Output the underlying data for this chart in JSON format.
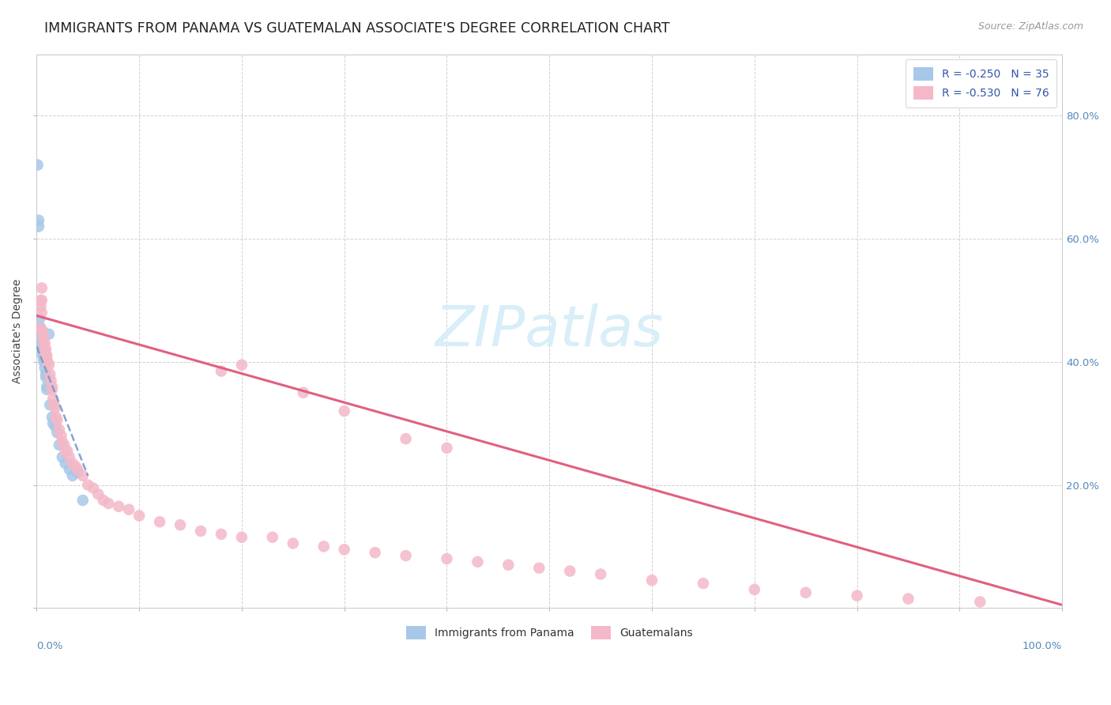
{
  "title": "IMMIGRANTS FROM PANAMA VS GUATEMALAN ASSOCIATE'S DEGREE CORRELATION CHART",
  "source": "Source: ZipAtlas.com",
  "ylabel": "Associate's Degree",
  "legend_1_label": "R = -0.250   N = 35",
  "legend_2_label": "R = -0.530   N = 76",
  "color_panama": "#a8c8e8",
  "color_guatemala": "#f4b8c8",
  "color_panama_line": "#7799cc",
  "color_guatemala_line": "#e06080",
  "background_color": "#ffffff",
  "grid_color": "#cccccc",
  "xlim": [
    0.0,
    1.0
  ],
  "ylim": [
    0.0,
    0.9
  ],
  "right_ytick_vals": [
    0.2,
    0.4,
    0.6,
    0.8
  ],
  "right_ytick_labels": [
    "20.0%",
    "40.0%",
    "60.0%",
    "80.0%"
  ],
  "panama_x": [
    0.001,
    0.002,
    0.002,
    0.003,
    0.003,
    0.004,
    0.004,
    0.004,
    0.005,
    0.005,
    0.005,
    0.005,
    0.006,
    0.006,
    0.006,
    0.007,
    0.007,
    0.008,
    0.009,
    0.009,
    0.01,
    0.01,
    0.012,
    0.013,
    0.015,
    0.016,
    0.018,
    0.02,
    0.022,
    0.025,
    0.028,
    0.032,
    0.035,
    0.04,
    0.045
  ],
  "panama_y": [
    0.72,
    0.63,
    0.62,
    0.47,
    0.455,
    0.455,
    0.45,
    0.44,
    0.445,
    0.44,
    0.435,
    0.43,
    0.42,
    0.415,
    0.41,
    0.405,
    0.4,
    0.39,
    0.38,
    0.375,
    0.36,
    0.355,
    0.445,
    0.33,
    0.31,
    0.3,
    0.295,
    0.285,
    0.265,
    0.245,
    0.235,
    0.225,
    0.215,
    0.22,
    0.175
  ],
  "guatemala_x": [
    0.003,
    0.004,
    0.004,
    0.005,
    0.005,
    0.005,
    0.006,
    0.006,
    0.007,
    0.007,
    0.008,
    0.008,
    0.009,
    0.009,
    0.01,
    0.01,
    0.011,
    0.012,
    0.013,
    0.014,
    0.015,
    0.015,
    0.016,
    0.017,
    0.018,
    0.019,
    0.02,
    0.022,
    0.024,
    0.025,
    0.027,
    0.028,
    0.03,
    0.032,
    0.035,
    0.038,
    0.04,
    0.045,
    0.05,
    0.055,
    0.06,
    0.065,
    0.07,
    0.08,
    0.09,
    0.1,
    0.12,
    0.14,
    0.16,
    0.18,
    0.2,
    0.23,
    0.25,
    0.28,
    0.3,
    0.33,
    0.36,
    0.4,
    0.43,
    0.46,
    0.49,
    0.52,
    0.55,
    0.6,
    0.65,
    0.7,
    0.75,
    0.8,
    0.85,
    0.92,
    0.18,
    0.2,
    0.26,
    0.3,
    0.36,
    0.4
  ],
  "guatemala_y": [
    0.455,
    0.49,
    0.5,
    0.52,
    0.5,
    0.48,
    0.45,
    0.44,
    0.44,
    0.43,
    0.42,
    0.43,
    0.42,
    0.41,
    0.41,
    0.4,
    0.4,
    0.395,
    0.38,
    0.37,
    0.36,
    0.355,
    0.34,
    0.33,
    0.325,
    0.31,
    0.305,
    0.29,
    0.28,
    0.27,
    0.265,
    0.255,
    0.255,
    0.245,
    0.235,
    0.23,
    0.225,
    0.215,
    0.2,
    0.195,
    0.185,
    0.175,
    0.17,
    0.165,
    0.16,
    0.15,
    0.14,
    0.135,
    0.125,
    0.12,
    0.115,
    0.115,
    0.105,
    0.1,
    0.095,
    0.09,
    0.085,
    0.08,
    0.075,
    0.07,
    0.065,
    0.06,
    0.055,
    0.045,
    0.04,
    0.03,
    0.025,
    0.02,
    0.015,
    0.01,
    0.385,
    0.395,
    0.35,
    0.32,
    0.275,
    0.26
  ],
  "panama_trend_x": [
    0.0,
    0.05
  ],
  "panama_trend_y": [
    0.425,
    0.215
  ],
  "guatemala_trend_x": [
    0.0,
    1.0
  ],
  "guatemala_trend_y": [
    0.475,
    0.005
  ],
  "marker_size": 110,
  "title_fontsize": 12.5,
  "source_fontsize": 9,
  "axis_label_fontsize": 10,
  "legend_fontsize": 10,
  "watermark_text": "ZIPatlas",
  "watermark_color": "#d8eef8",
  "bottom_legend_label1": "Immigrants from Panama",
  "bottom_legend_label2": "Guatemalans"
}
